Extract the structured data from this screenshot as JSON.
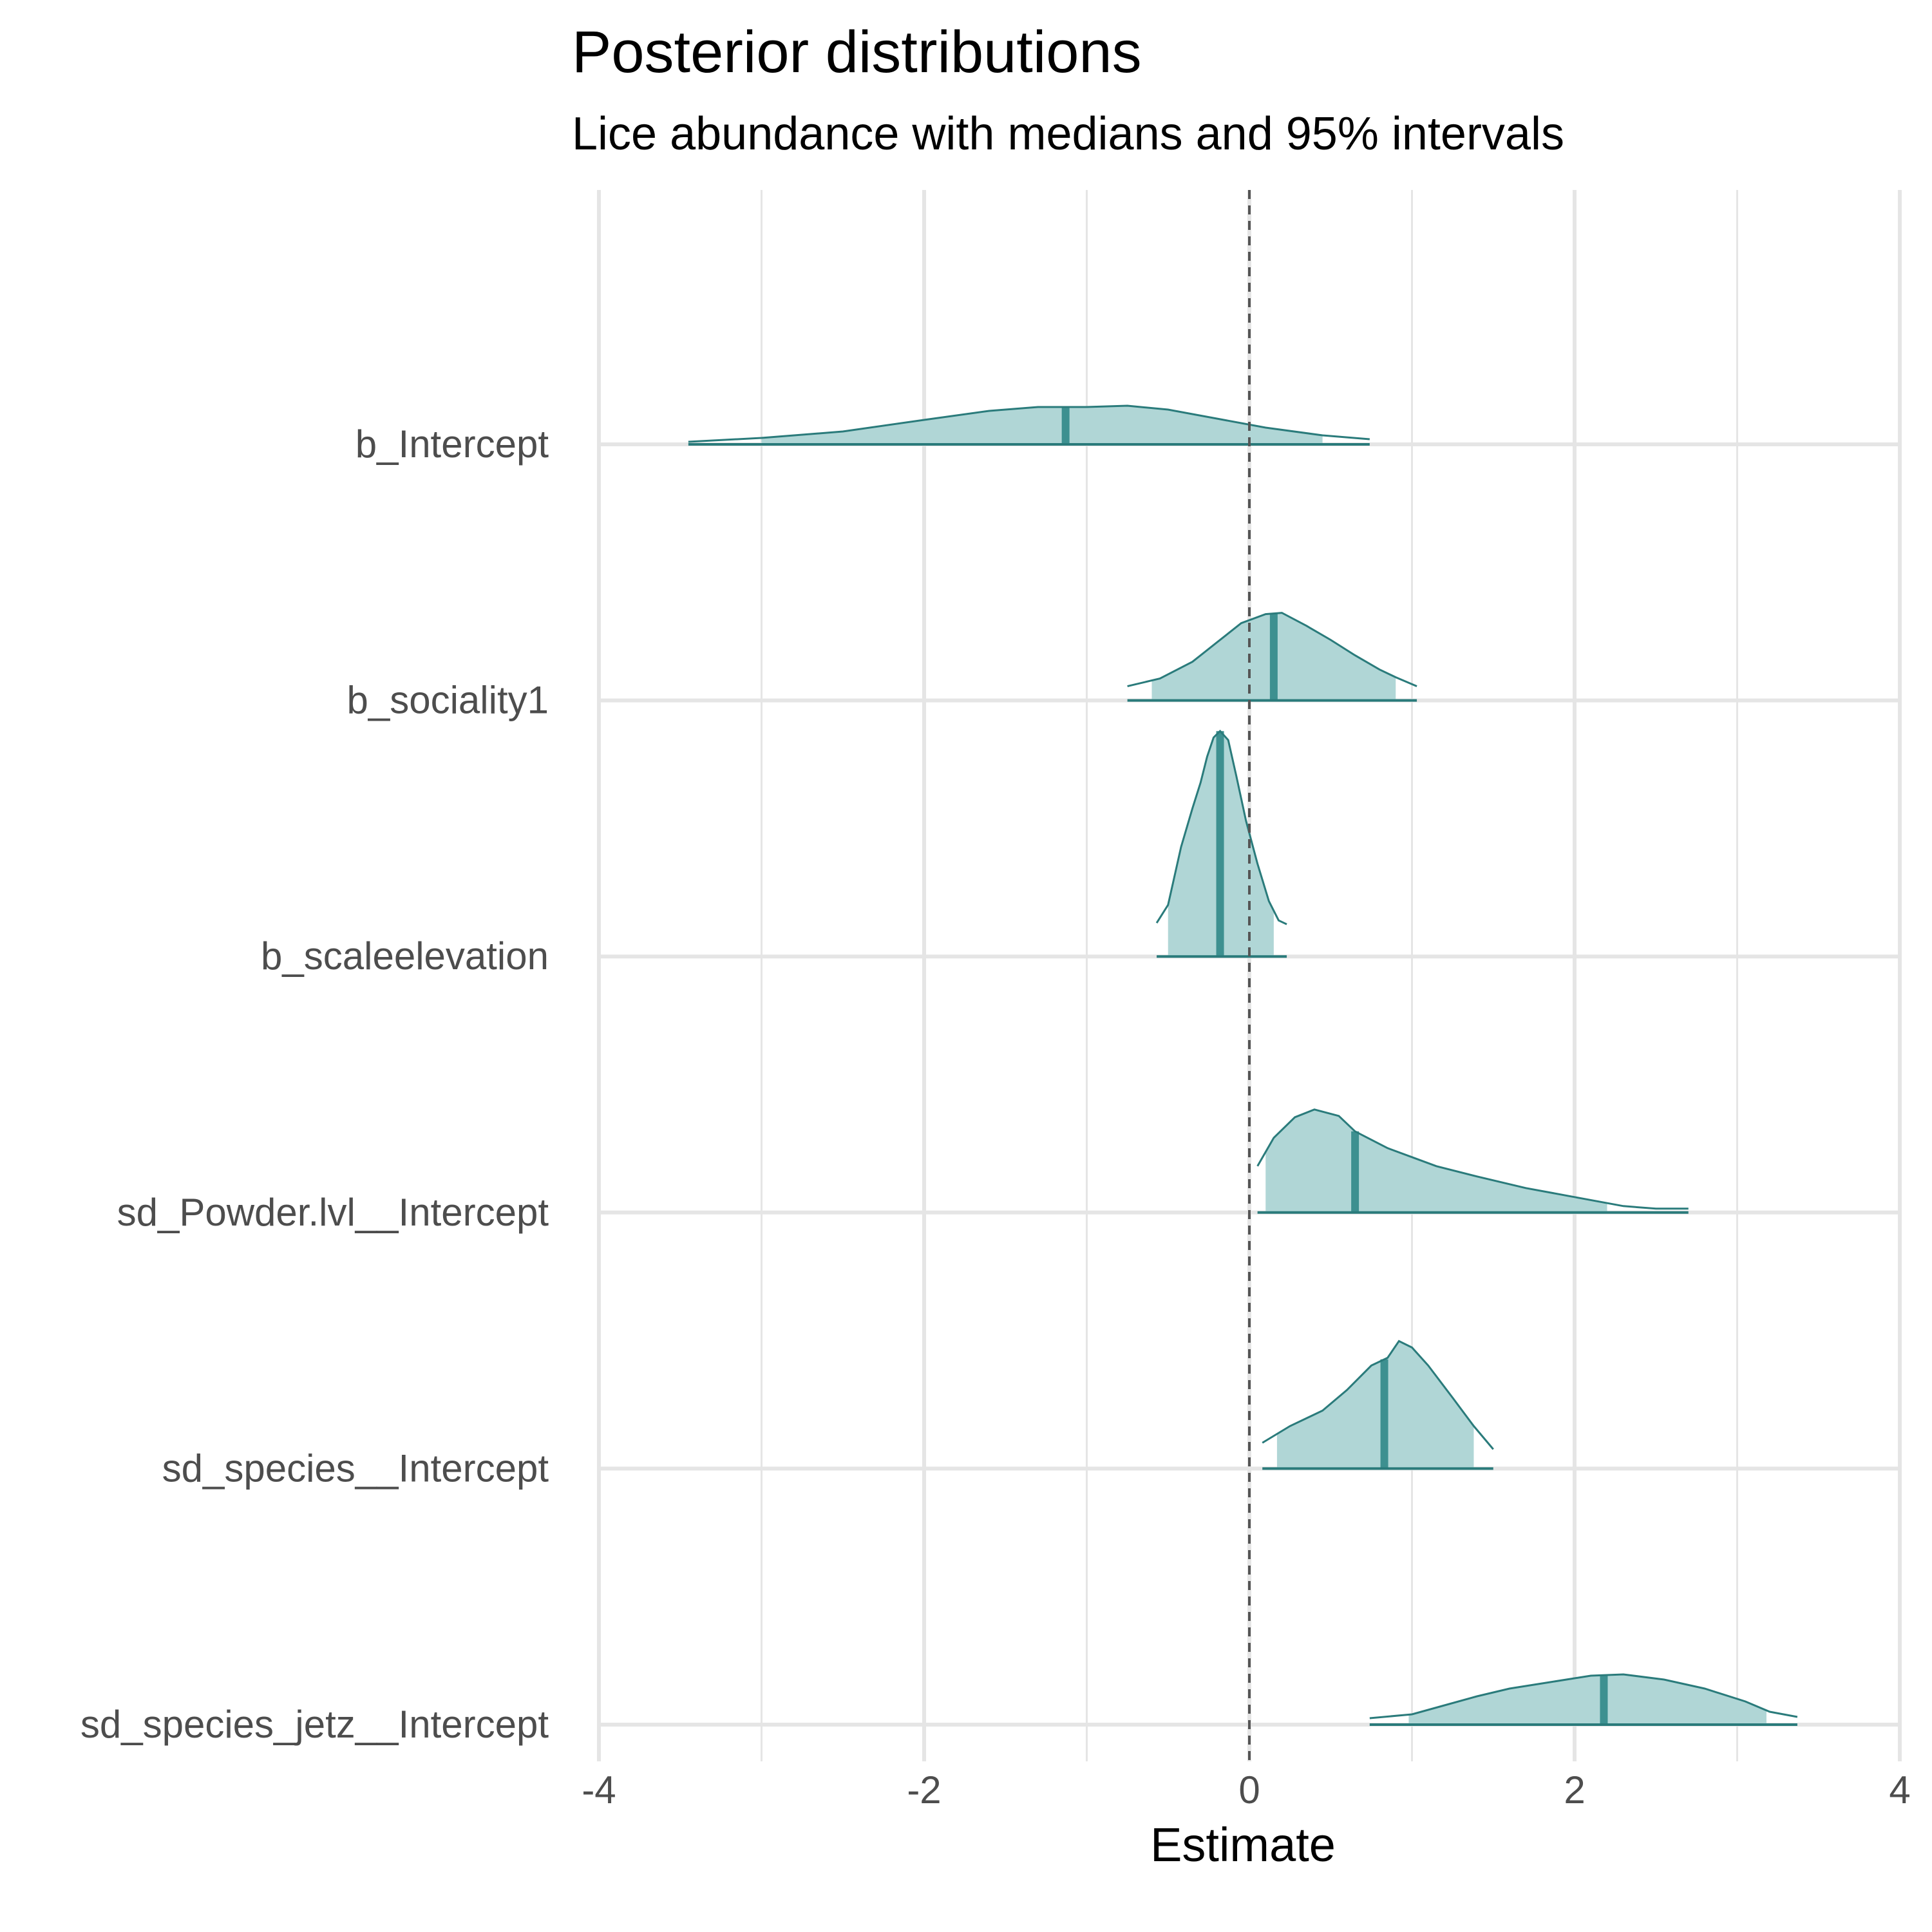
{
  "chart_data": {
    "type": "density",
    "title": "Posterior distributions",
    "subtitle": "Lice abundance with medians and 95% intervals",
    "xlabel": "Estimate",
    "ylabel": "",
    "xlim": [
      -4,
      4
    ],
    "x_ticks": [
      "-4",
      "-2",
      "0",
      "2",
      "4"
    ],
    "reference_line_x": 0,
    "grid": true,
    "legend": "none",
    "colors": {
      "fill": "#b0d6d6",
      "line": "#2a7b7b",
      "median": "#3d9090",
      "grid": "#e5e5e5",
      "ref": "#555555"
    },
    "series": [
      {
        "name": "b_Intercept",
        "median": -1.13,
        "ci95": [
          -3.0,
          0.45
        ],
        "range": [
          -3.45,
          0.74
        ],
        "density": [
          [
            -3.45,
            0.02
          ],
          [
            -3.0,
            0.05
          ],
          [
            -2.5,
            0.1
          ],
          [
            -2.0,
            0.19
          ],
          [
            -1.6,
            0.26
          ],
          [
            -1.3,
            0.29
          ],
          [
            -1.0,
            0.29
          ],
          [
            -0.75,
            0.3
          ],
          [
            -0.5,
            0.27
          ],
          [
            -0.2,
            0.2
          ],
          [
            0.1,
            0.13
          ],
          [
            0.45,
            0.07
          ],
          [
            0.74,
            0.04
          ]
        ]
      },
      {
        "name": "b_sociality1",
        "median": 0.15,
        "ci95": [
          -0.6,
          0.9
        ],
        "range": [
          -0.75,
          1.03
        ],
        "density": [
          [
            -0.75,
            0.11
          ],
          [
            -0.55,
            0.17
          ],
          [
            -0.35,
            0.3
          ],
          [
            -0.2,
            0.45
          ],
          [
            -0.05,
            0.6
          ],
          [
            0.1,
            0.67
          ],
          [
            0.2,
            0.68
          ],
          [
            0.35,
            0.58
          ],
          [
            0.5,
            0.47
          ],
          [
            0.65,
            0.35
          ],
          [
            0.8,
            0.24
          ],
          [
            0.9,
            0.18
          ],
          [
            1.03,
            0.11
          ]
        ]
      },
      {
        "name": "b_scaleelevation",
        "median": -0.18,
        "ci95": [
          -0.5,
          0.15
        ],
        "range": [
          -0.57,
          0.23
        ],
        "density": [
          [
            -0.57,
            0.26
          ],
          [
            -0.5,
            0.4
          ],
          [
            -0.42,
            0.85
          ],
          [
            -0.35,
            1.15
          ],
          [
            -0.3,
            1.35
          ],
          [
            -0.26,
            1.55
          ],
          [
            -0.22,
            1.7
          ],
          [
            -0.18,
            1.75
          ],
          [
            -0.13,
            1.68
          ],
          [
            -0.08,
            1.4
          ],
          [
            -0.02,
            1.05
          ],
          [
            0.05,
            0.72
          ],
          [
            0.12,
            0.43
          ],
          [
            0.18,
            0.28
          ],
          [
            0.23,
            0.25
          ]
        ]
      },
      {
        "name": "sd_Powder.lvl__Intercept",
        "median": 0.65,
        "ci95": [
          0.1,
          2.2
        ],
        "range": [
          0.05,
          2.7
        ],
        "density": [
          [
            0.05,
            0.36
          ],
          [
            0.15,
            0.58
          ],
          [
            0.28,
            0.74
          ],
          [
            0.4,
            0.8
          ],
          [
            0.55,
            0.75
          ],
          [
            0.65,
            0.63
          ],
          [
            0.85,
            0.5
          ],
          [
            1.0,
            0.43
          ],
          [
            1.15,
            0.36
          ],
          [
            1.4,
            0.28
          ],
          [
            1.7,
            0.19
          ],
          [
            2.0,
            0.12
          ],
          [
            2.3,
            0.05
          ],
          [
            2.5,
            0.03
          ],
          [
            2.7,
            0.03
          ]
        ]
      },
      {
        "name": "sd_species__Intercept",
        "median": 0.83,
        "ci95": [
          0.17,
          1.38
        ],
        "range": [
          0.08,
          1.5
        ],
        "density": [
          [
            0.08,
            0.2
          ],
          [
            0.25,
            0.33
          ],
          [
            0.45,
            0.45
          ],
          [
            0.6,
            0.61
          ],
          [
            0.75,
            0.8
          ],
          [
            0.85,
            0.86
          ],
          [
            0.92,
            0.99
          ],
          [
            1.0,
            0.94
          ],
          [
            1.1,
            0.8
          ],
          [
            1.25,
            0.55
          ],
          [
            1.38,
            0.33
          ],
          [
            1.5,
            0.15
          ]
        ]
      },
      {
        "name": "sd_species_jetz__Intercept",
        "median": 2.18,
        "ci95": [
          0.98,
          3.18
        ],
        "range": [
          0.74,
          3.37
        ],
        "density": [
          [
            0.74,
            0.05
          ],
          [
            1.0,
            0.08
          ],
          [
            1.2,
            0.15
          ],
          [
            1.4,
            0.22
          ],
          [
            1.6,
            0.28
          ],
          [
            1.85,
            0.33
          ],
          [
            2.1,
            0.38
          ],
          [
            2.3,
            0.39
          ],
          [
            2.55,
            0.35
          ],
          [
            2.8,
            0.28
          ],
          [
            3.05,
            0.18
          ],
          [
            3.2,
            0.1
          ],
          [
            3.37,
            0.06
          ]
        ]
      }
    ]
  }
}
